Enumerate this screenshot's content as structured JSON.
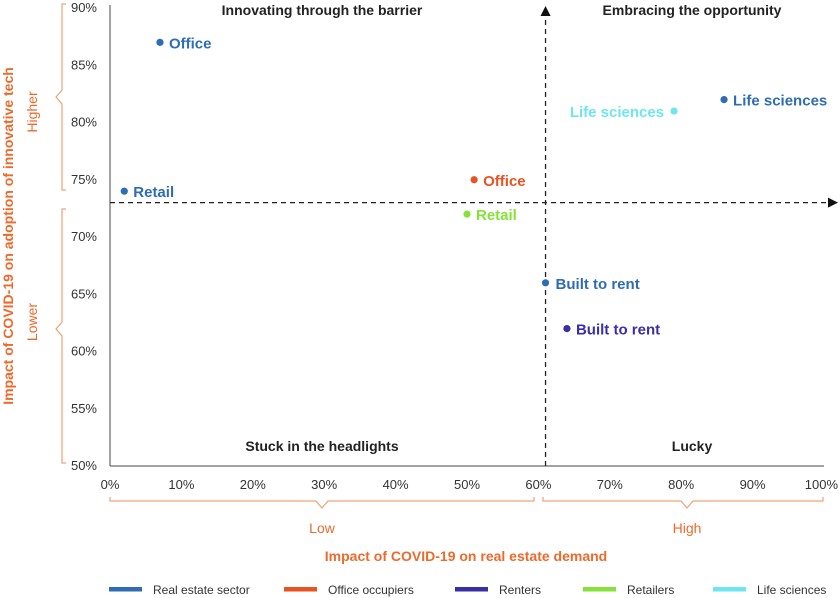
{
  "chart_data": {
    "type": "scatter",
    "title": "",
    "xlabel": "Impact of COVID-19 on real estate demand",
    "ylabel": "Impact of COVID-19 on adoption of innovative tech",
    "xlim": [
      0,
      100
    ],
    "ylim": [
      50,
      90
    ],
    "x_ticks": [
      "0%",
      "10%",
      "20%",
      "30%",
      "40%",
      "50%",
      "60%",
      "70%",
      "80%",
      "90%",
      "100%"
    ],
    "y_ticks": [
      "50%",
      "55%",
      "60%",
      "65%",
      "70%",
      "75%",
      "80%",
      "85%",
      "90%"
    ],
    "divider_x": 61,
    "divider_y": 73,
    "quadrants": {
      "top_left": "Innovating through the barrier",
      "top_right": "Embracing the opportunity",
      "bottom_left": "Stuck in the headlights",
      "bottom_right": "Lucky"
    },
    "x_bands": {
      "low": "Low",
      "high": "High"
    },
    "y_bands": {
      "higher": "Higher",
      "lower": "Lower"
    },
    "series": [
      {
        "name": "Real estate sector",
        "color": "#2e6db4",
        "points": [
          {
            "label": "Office",
            "x": 7,
            "y": 87
          },
          {
            "label": "Retail",
            "x": 2,
            "y": 74
          },
          {
            "label": "Life sciences",
            "x": 86,
            "y": 82
          },
          {
            "label": "Built to rent",
            "x": 61,
            "y": 66
          }
        ]
      },
      {
        "name": "Office occupiers",
        "color": "#e8531f",
        "points": [
          {
            "label": "Office",
            "x": 51,
            "y": 75
          }
        ]
      },
      {
        "name": "Renters",
        "color": "#3a2ea6",
        "points": [
          {
            "label": "Built to rent",
            "x": 64,
            "y": 62
          }
        ]
      },
      {
        "name": "Retailers",
        "color": "#86e23a",
        "points": [
          {
            "label": "Retail",
            "x": 50,
            "y": 72
          }
        ]
      },
      {
        "name": "Life sciences",
        "color": "#6fe6ee",
        "points": [
          {
            "label": "Life sciences",
            "x": 79,
            "y": 81
          }
        ]
      }
    ]
  }
}
